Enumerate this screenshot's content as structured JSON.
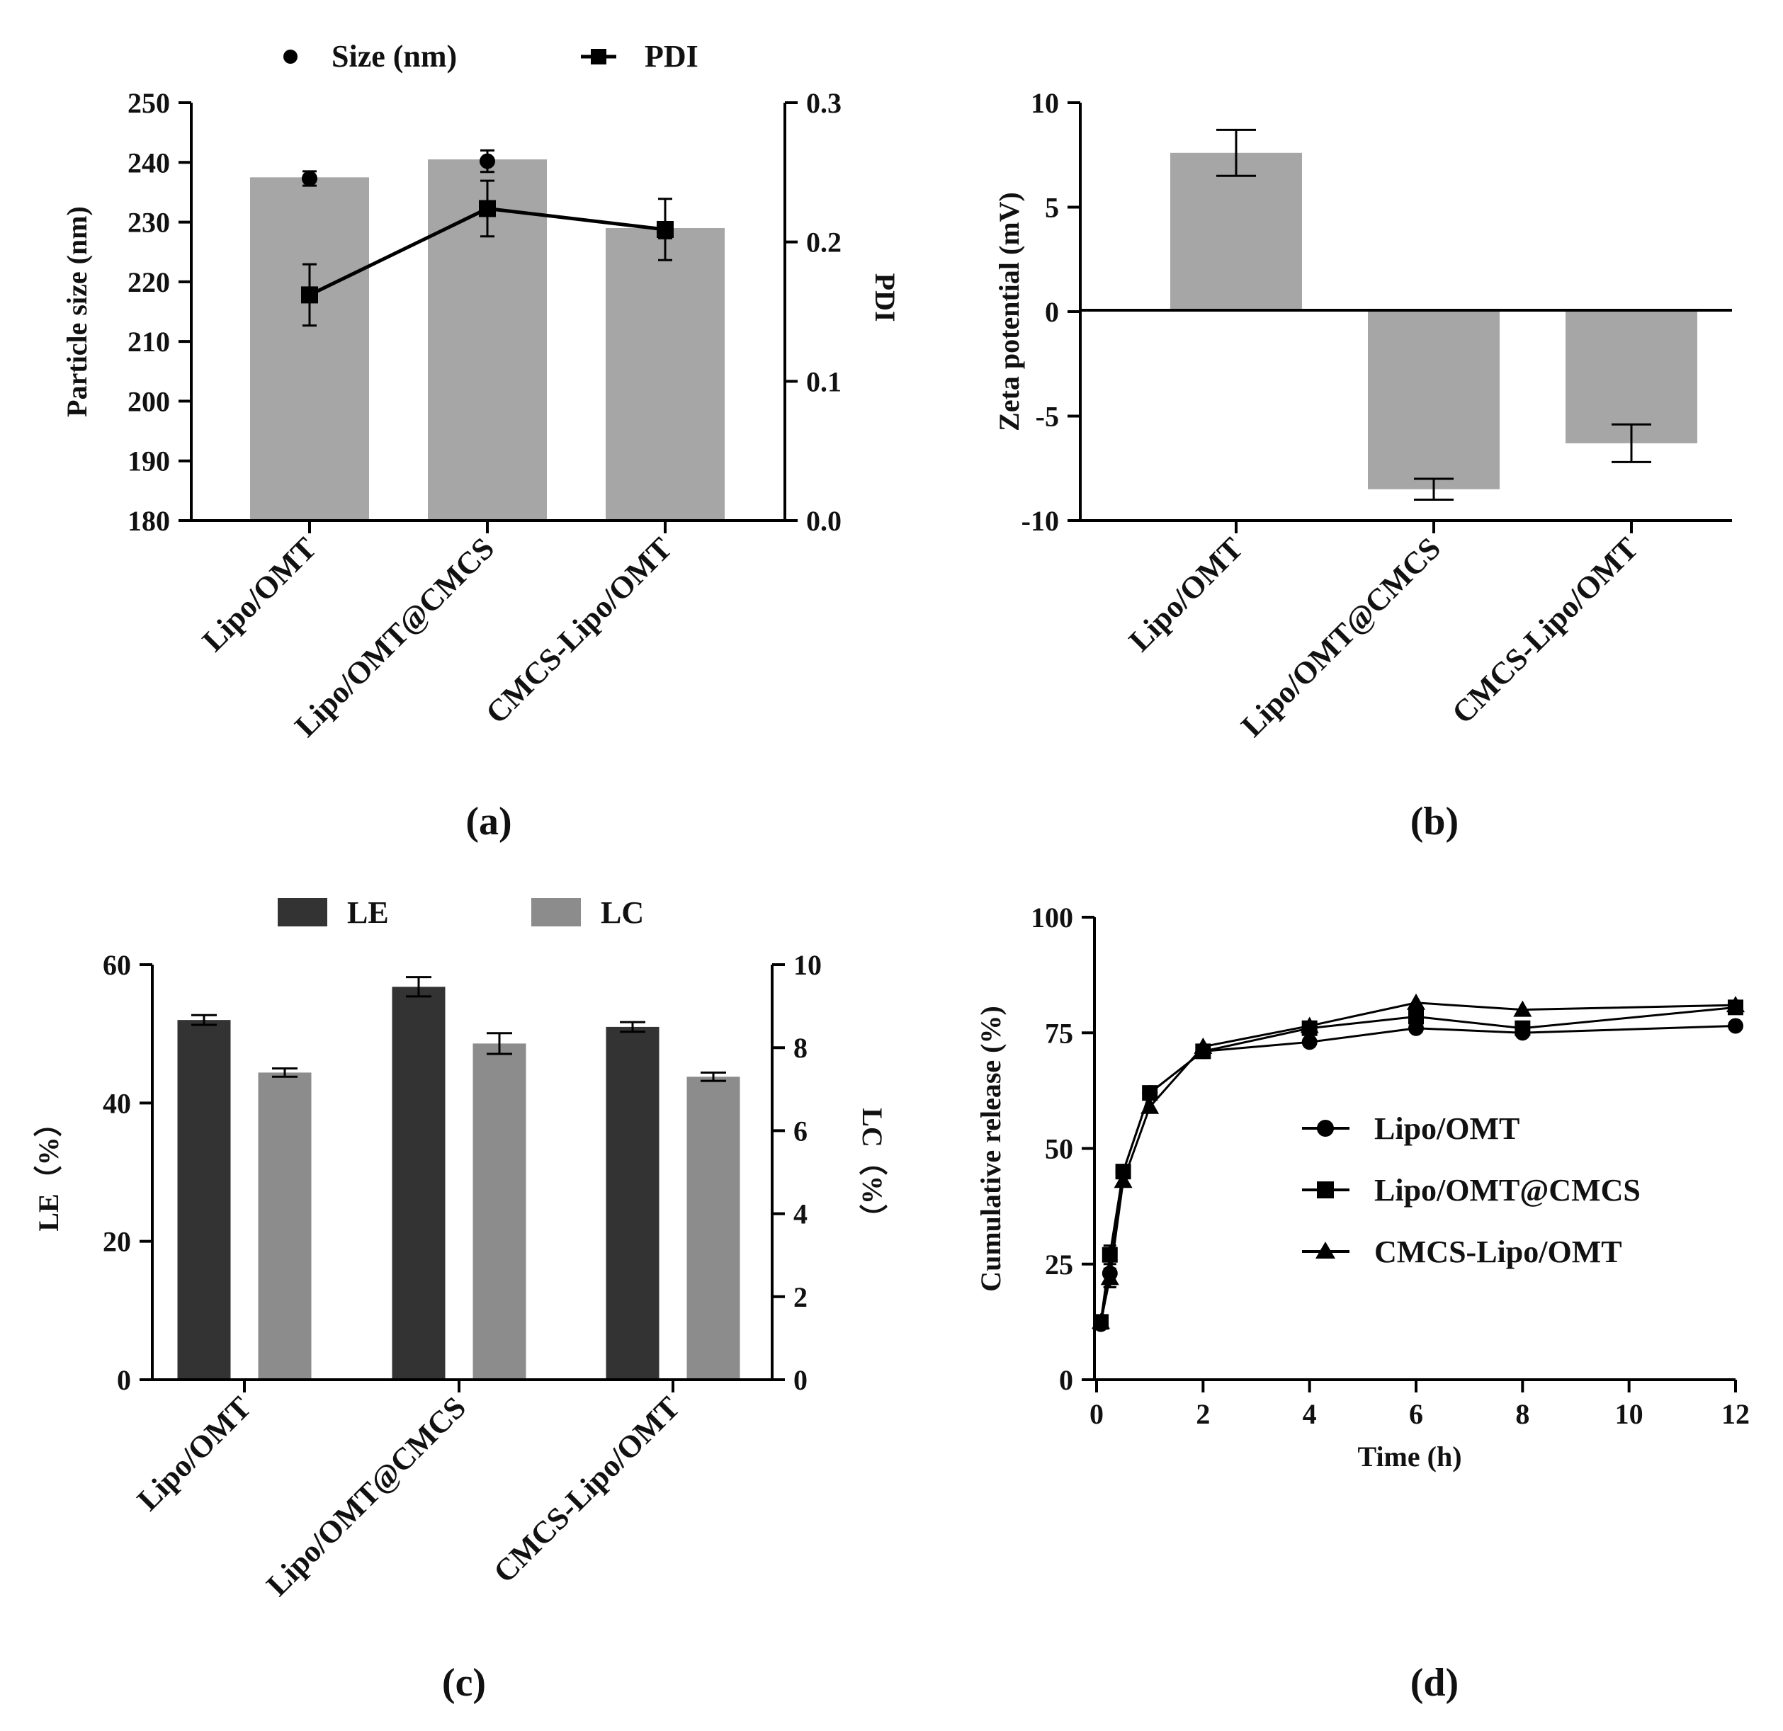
{
  "colors": {
    "axis": "#000000",
    "bar_gray": "#a6a6a6",
    "le_dark": "#333333",
    "lc_gray": "#8c8c8c",
    "marker": "#000000"
  },
  "chart_data": [
    {
      "id": "a",
      "type": "bar",
      "panel_label": "(a)",
      "categories": [
        "Lipo/OMT",
        "Lipo/OMT@CMCS",
        "CMCS-Lipo/OMT"
      ],
      "ylabel": "Particle size (nm)",
      "y2label": "PDI",
      "ylim": [
        180,
        250
      ],
      "yticks": [
        180,
        190,
        200,
        210,
        220,
        230,
        240,
        250
      ],
      "y2lim": [
        0,
        0.3
      ],
      "y2ticks": [
        "0.0",
        "0.1",
        "0.2",
        "0.3"
      ],
      "legend": [
        "Size (nm)",
        "PDI"
      ],
      "series": [
        {
          "name": "Size (nm)",
          "kind": "bar+dot",
          "values": [
            237.5,
            240.5,
            229
          ],
          "dot_values": [
            237.3,
            240.2,
            228.5
          ],
          "dot_err": [
            1.2,
            1.8,
            1.2
          ]
        },
        {
          "name": "PDI",
          "kind": "line",
          "axis": "right",
          "values": [
            0.162,
            0.224,
            0.209
          ],
          "err": [
            0.022,
            0.02,
            0.022
          ]
        }
      ]
    },
    {
      "id": "b",
      "type": "bar",
      "panel_label": "(b)",
      "categories": [
        "Lipo/OMT",
        "Lipo/OMT@CMCS",
        "CMCS-Lipo/OMT"
      ],
      "ylabel": "Zeta potential (mV)",
      "ylim": [
        -10,
        10
      ],
      "yticks": [
        "-10",
        "-5",
        "0",
        "5",
        "10"
      ],
      "series": [
        {
          "name": "Zeta potential",
          "values": [
            7.6,
            -8.5,
            -6.3
          ],
          "err": [
            1.1,
            0.5,
            0.9
          ]
        }
      ]
    },
    {
      "id": "c",
      "type": "bar",
      "panel_label": "(c)",
      "categories": [
        "Lipo/OMT",
        "Lipo/OMT@CMCS",
        "CMCS-Lipo/OMT"
      ],
      "ylabel": "LE（%）",
      "y2label": "LC（%）",
      "ylim": [
        0,
        60
      ],
      "yticks": [
        0,
        20,
        40,
        60
      ],
      "y2lim": [
        0,
        10
      ],
      "y2ticks": [
        0,
        2,
        4,
        6,
        8,
        10
      ],
      "legend": [
        "LE",
        "LC"
      ],
      "series": [
        {
          "name": "LE",
          "axis": "left",
          "values": [
            52,
            56.8,
            51
          ],
          "err": [
            0.7,
            1.4,
            0.7
          ]
        },
        {
          "name": "LC",
          "axis": "right",
          "values": [
            7.4,
            8.1,
            7.3
          ],
          "err": [
            0.1,
            0.25,
            0.1
          ]
        }
      ]
    },
    {
      "id": "d",
      "type": "line",
      "panel_label": "(d)",
      "xlabel": "Time (h)",
      "ylabel": "Cumulative release (%)",
      "xlim": [
        0,
        12
      ],
      "xticks": [
        0,
        2,
        4,
        6,
        8,
        10,
        12
      ],
      "ylim": [
        0,
        100
      ],
      "yticks": [
        0,
        25,
        50,
        75,
        100
      ],
      "x": [
        0.08,
        0.25,
        0.5,
        1,
        2,
        4,
        6,
        8,
        12
      ],
      "series": [
        {
          "name": "Lipo/OMT",
          "marker": "circle",
          "values": [
            12,
            23,
            45,
            62,
            71,
            73,
            76,
            75,
            76.5
          ],
          "err": [
            0,
            3,
            0,
            0,
            0,
            0,
            0,
            0,
            0
          ]
        },
        {
          "name": "Lipo/OMT@CMCS",
          "marker": "square",
          "values": [
            12.5,
            27,
            45,
            62,
            71,
            76,
            78.5,
            76,
            80.5
          ],
          "err": [
            0,
            2,
            0,
            0,
            0,
            0,
            0,
            0,
            0
          ]
        },
        {
          "name": "CMCS-Lipo/OMT",
          "marker": "triangle",
          "values": [
            12.5,
            22,
            43,
            59,
            72,
            76.5,
            81.5,
            80,
            81
          ],
          "err": [
            0,
            2,
            0,
            0,
            0,
            0,
            0,
            0,
            0
          ]
        }
      ]
    }
  ]
}
